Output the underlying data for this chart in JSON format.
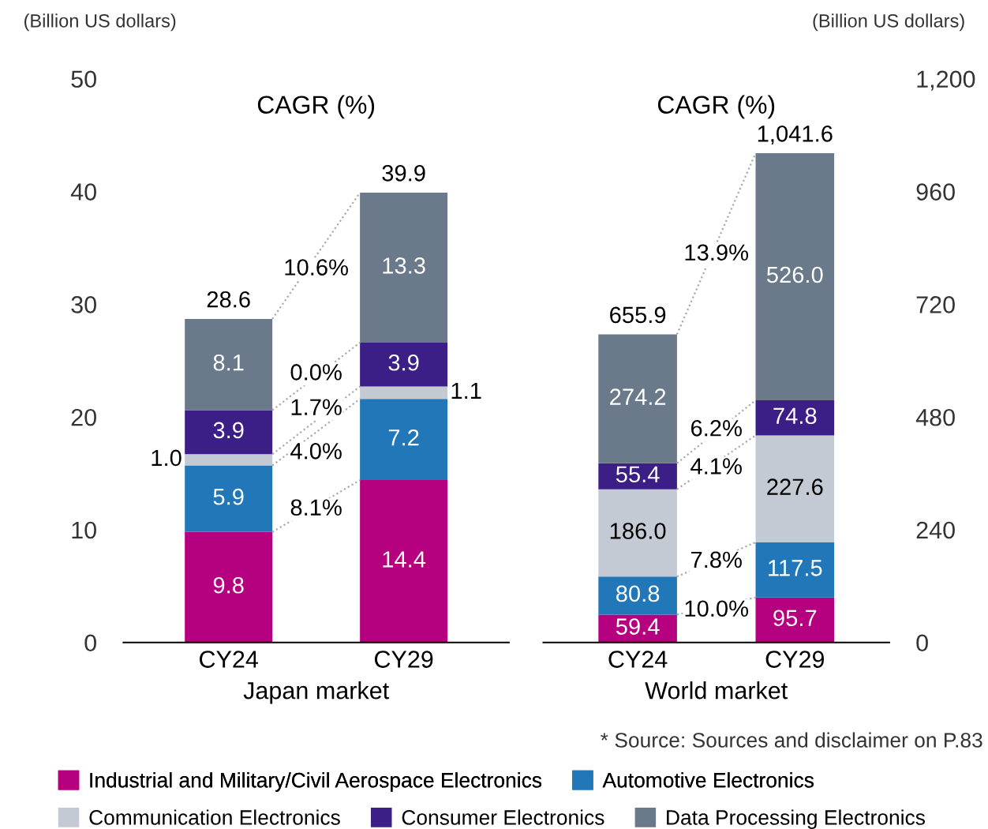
{
  "chart_data": [
    {
      "type": "bar",
      "stacked": true,
      "xlabel": "Japan market",
      "ylabel": "(Billion US dollars)",
      "categories": [
        "CY24",
        "CY29"
      ],
      "series": [
        {
          "name": "Industrial and Military/Civil Aerospace Electronics",
          "color": "#b5007f",
          "values": [
            9.8,
            14.4
          ],
          "value_labels": [
            "9.8",
            "14.4"
          ]
        },
        {
          "name": "Automotive Electronics",
          "color": "#2277b8",
          "values": [
            5.9,
            7.2
          ],
          "value_labels": [
            "5.9",
            "7.2"
          ]
        },
        {
          "name": "Communication Electronics",
          "color": "#c3cad3",
          "values": [
            1.0,
            1.1
          ],
          "value_labels": [
            "1.0",
            "1.1"
          ]
        },
        {
          "name": "Consumer Electronics",
          "color": "#3c1e87",
          "values": [
            3.9,
            3.9
          ],
          "value_labels": [
            "3.9",
            "3.9"
          ]
        },
        {
          "name": "Data Processing Electronics",
          "color": "#6b7a8a",
          "values": [
            8.1,
            13.3
          ],
          "value_labels": [
            "8.1",
            "13.3"
          ]
        }
      ],
      "ylim": [
        0,
        50
      ],
      "yticks": [
        0,
        10,
        20,
        30,
        40,
        50
      ],
      "totals": [
        "28.6",
        "39.9"
      ],
      "annotations": [
        "CAGR (%)",
        {
          "text": "8.1%",
          "y": 11.8
        },
        {
          "text": "4.0%",
          "y": 16.8
        },
        {
          "text": "1.7%",
          "y": 20.7
        },
        {
          "text": "0.0%",
          "y": 23.8
        },
        {
          "text": "10.6%",
          "y": 33.1
        }
      ],
      "legend": "bottom"
    },
    {
      "type": "bar",
      "stacked": true,
      "xlabel": "World market",
      "ylabel": "(Billion US dollars)",
      "categories": [
        "CY24",
        "CY29"
      ],
      "series": [
        {
          "color": "#b5007f",
          "values": [
            59.4,
            95.7
          ],
          "value_labels": [
            "59.4",
            "95.7"
          ]
        },
        {
          "color": "#2277b8",
          "values": [
            80.8,
            117.5
          ],
          "value_labels": [
            "80.8",
            "117.5"
          ]
        },
        {
          "color": "#c3cad3",
          "values": [
            186.0,
            227.6
          ],
          "value_labels": [
            "186.0",
            "227.6"
          ]
        },
        {
          "color": "#3c1e87",
          "values": [
            55.4,
            74.8
          ],
          "value_labels": [
            "55.4",
            "74.8"
          ]
        },
        {
          "color": "#6b7a8a",
          "values": [
            274.2,
            526.0
          ],
          "value_labels": [
            "274.2",
            "526.0"
          ]
        }
      ],
      "ylim": [
        0,
        1200
      ],
      "yticks": [
        0,
        240,
        480,
        720,
        960,
        {
          "value": 1200,
          "label": "1,200"
        }
      ],
      "totals": [
        "655.9",
        "1,041.6"
      ],
      "annotations": [
        "CAGR (%)",
        {
          "text": "10.0%",
          "y": 68
        },
        {
          "text": "7.8%",
          "y": 172
        },
        {
          "text": "4.1%",
          "y": 371
        },
        {
          "text": "6.2%",
          "y": 452
        },
        {
          "text": "13.9%",
          "y": 826
        },
        "* Source: Sources and disclaimer on P.83"
      ]
    }
  ]
}
